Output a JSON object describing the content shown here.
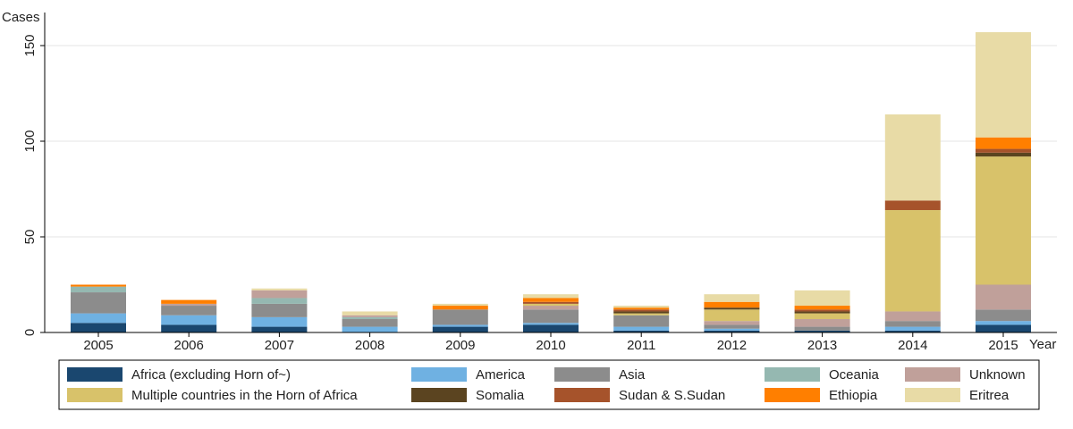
{
  "chart_data": {
    "type": "bar",
    "stacked": true,
    "title": "",
    "xlabel": "Year",
    "ylabel": "Cases",
    "ylim": [
      0,
      160
    ],
    "yticks": [
      0,
      50,
      100,
      150
    ],
    "grid": true,
    "legend_position": "bottom",
    "categories": [
      "2005",
      "2006",
      "2007",
      "2008",
      "2009",
      "2010",
      "2011",
      "2012",
      "2013",
      "2014",
      "2015"
    ],
    "series": [
      {
        "name": "Africa (excluding Horn of~)",
        "color": "#1a476f",
        "values": [
          5,
          4,
          3,
          0,
          3,
          4,
          1,
          1,
          1,
          1,
          4
        ]
      },
      {
        "name": "America",
        "color": "#6fb1e2",
        "values": [
          5,
          5,
          5,
          3,
          1,
          1,
          2,
          1,
          0,
          2,
          2
        ]
      },
      {
        "name": "Asia",
        "color": "#8c8c8c",
        "values": [
          11,
          5,
          7,
          4,
          8,
          7,
          6,
          2,
          2,
          3,
          6
        ]
      },
      {
        "name": "Oceania",
        "color": "#95b8b1",
        "values": [
          3,
          0,
          3,
          1,
          0,
          0,
          0,
          0,
          0,
          0,
          0
        ]
      },
      {
        "name": "Unknown",
        "color": "#c0a09a",
        "values": [
          0,
          1,
          4,
          1,
          0,
          2,
          0,
          2,
          4,
          5,
          13
        ]
      },
      {
        "name": "Multiple countries in the Horn of Africa",
        "color": "#d8c26a",
        "values": [
          0,
          0,
          0,
          0,
          0,
          1,
          1,
          6,
          3,
          53,
          67
        ]
      },
      {
        "name": "Somalia",
        "color": "#5b4420",
        "values": [
          0,
          0,
          0,
          0,
          0,
          0,
          1,
          1,
          1,
          0,
          2
        ]
      },
      {
        "name": "Sudan & S.Sudan",
        "color": "#a6532b",
        "values": [
          0,
          0,
          0,
          0,
          0,
          1,
          1,
          0,
          1,
          5,
          2
        ]
      },
      {
        "name": "Ethiopia",
        "color": "#ff7f00",
        "values": [
          1,
          2,
          0,
          0,
          2,
          2,
          1,
          3,
          2,
          0,
          6
        ]
      },
      {
        "name": "Eritrea",
        "color": "#e8dba6",
        "values": [
          0,
          0,
          1,
          2,
          1,
          2,
          1,
          4,
          8,
          45,
          55
        ]
      }
    ]
  }
}
